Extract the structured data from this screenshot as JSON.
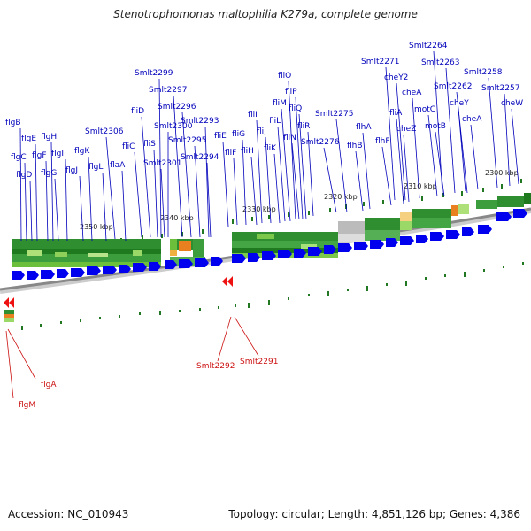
{
  "title": "Stenotrophomonas maltophilia K279a, complete genome",
  "footer": {
    "accession": "Accession: NC_010943",
    "topology": "Topology: circular; Length: 4,851,126 bp; Genes: 4,386"
  },
  "colors": {
    "forward_gene": "#0000ee",
    "reverse_gene": "#ee1111",
    "forward_label": "#0000bb",
    "reverse_label": "#cc1111",
    "tick": "#227722",
    "backbone": "#888888"
  },
  "ruler_labels": [
    "2350 kbp",
    "2340 kbp",
    "2330 kbp",
    "2320 kbp",
    "2310 kbp",
    "2300 kbp"
  ],
  "forward_genes": [
    "flgB",
    "flgE",
    "flgH",
    "flgC",
    "flgF",
    "flgI",
    "flgD",
    "flgG",
    "flgJ",
    "flgK",
    "flgL",
    "flaA",
    "Smlt2306",
    "fliC",
    "fliS",
    "fliD",
    "Smlt2301",
    "Smlt2300",
    "Smlt2299",
    "Smlt2297",
    "Smlt2296",
    "Smlt2295",
    "Smlt2294",
    "Smlt2293",
    "fliE",
    "fliF",
    "fliG",
    "fliH",
    "fliI",
    "fliJ",
    "fliK",
    "fliL",
    "fliM",
    "fliN",
    "fliO",
    "fliP",
    "fliQ",
    "fliR",
    "Smlt2276",
    "Smlt2275",
    "flhB",
    "flhA",
    "flhF",
    "fliA",
    "cheZ",
    "Smlt2271",
    "cheY2",
    "cheA",
    "motC",
    "motB",
    "Smlt2264",
    "Smlt2263",
    "Smlt2262",
    "cheY",
    "cheA",
    "Smlt2258",
    "Smlt2257",
    "cheW"
  ],
  "reverse_genes": [
    "flgA",
    "flgM",
    "Smlt2292",
    "Smlt2291"
  ]
}
